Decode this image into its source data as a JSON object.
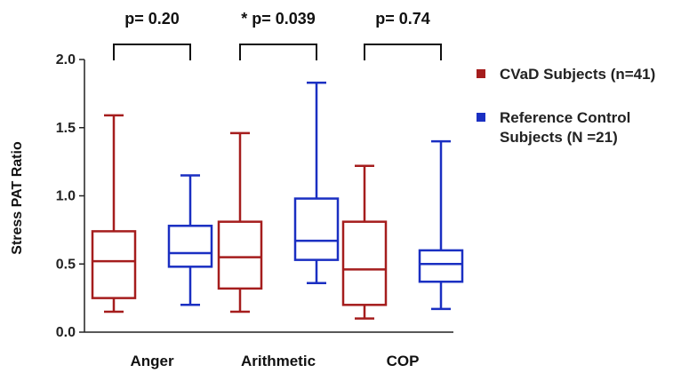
{
  "chart_data": {
    "type": "box",
    "ylabel": "Stress PAT Ratio",
    "xlabel": "",
    "ylim": [
      0,
      2.0
    ],
    "yticks": [
      "0.0",
      "0.5",
      "1.0",
      "1.5",
      "2.0"
    ],
    "categories": [
      "Anger",
      "Arithmetic",
      "COP"
    ],
    "series": [
      {
        "name_lines": [
          "CVaD Subjects (n=41)"
        ],
        "color": "#a51d1d",
        "boxes": [
          {
            "min": 0.15,
            "q1": 0.25,
            "median": 0.52,
            "q3": 0.74,
            "max": 1.59
          },
          {
            "min": 0.15,
            "q1": 0.32,
            "median": 0.55,
            "q3": 0.81,
            "max": 1.46
          },
          {
            "min": 0.1,
            "q1": 0.2,
            "median": 0.46,
            "q3": 0.81,
            "max": 1.22
          }
        ]
      },
      {
        "name_lines": [
          "Reference Control",
          "Subjects (N =21)"
        ],
        "color": "#1a2fc2",
        "boxes": [
          {
            "min": 0.2,
            "q1": 0.48,
            "median": 0.58,
            "q3": 0.78,
            "max": 1.15
          },
          {
            "min": 0.36,
            "q1": 0.53,
            "median": 0.67,
            "q3": 0.98,
            "max": 1.83
          },
          {
            "min": 0.17,
            "q1": 0.37,
            "median": 0.5,
            "q3": 0.6,
            "max": 1.4
          }
        ]
      }
    ],
    "comparisons": [
      "p= 0.20",
      "* p= 0.039",
      "p= 0.74"
    ],
    "legend_position": "right"
  }
}
